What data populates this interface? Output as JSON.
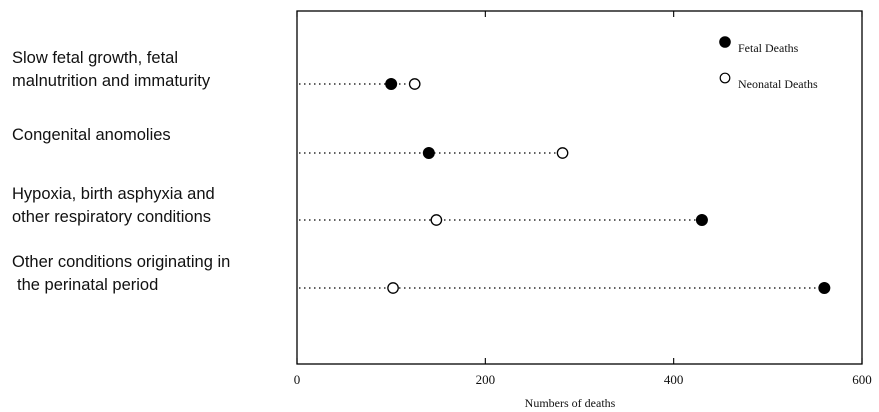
{
  "chart_data": {
    "type": "scatter",
    "title": "",
    "xlabel": "Numbers of deaths",
    "ylabel": "",
    "xlim": [
      0,
      600
    ],
    "x_ticks": [
      0,
      200,
      400,
      600
    ],
    "x_tick_labels": [
      "0",
      "200",
      "400",
      "600"
    ],
    "categories": [
      [
        "Slow fetal growth, fetal",
        "malnutrition and immaturity"
      ],
      [
        "Congenital anomolies"
      ],
      [
        "Hypoxia, birth asphyxia and",
        "other respiratory conditions"
      ],
      [
        "Other conditions originating in",
        "the perinatal period"
      ]
    ],
    "series": [
      {
        "name": "Fetal Deaths",
        "marker": "filled-circle",
        "values": [
          100,
          140,
          430,
          560
        ]
      },
      {
        "name": "Neonatal Deaths",
        "marker": "open-circle",
        "values": [
          125,
          282,
          148,
          102
        ]
      }
    ],
    "legend_position": "top-right",
    "grid": false
  }
}
